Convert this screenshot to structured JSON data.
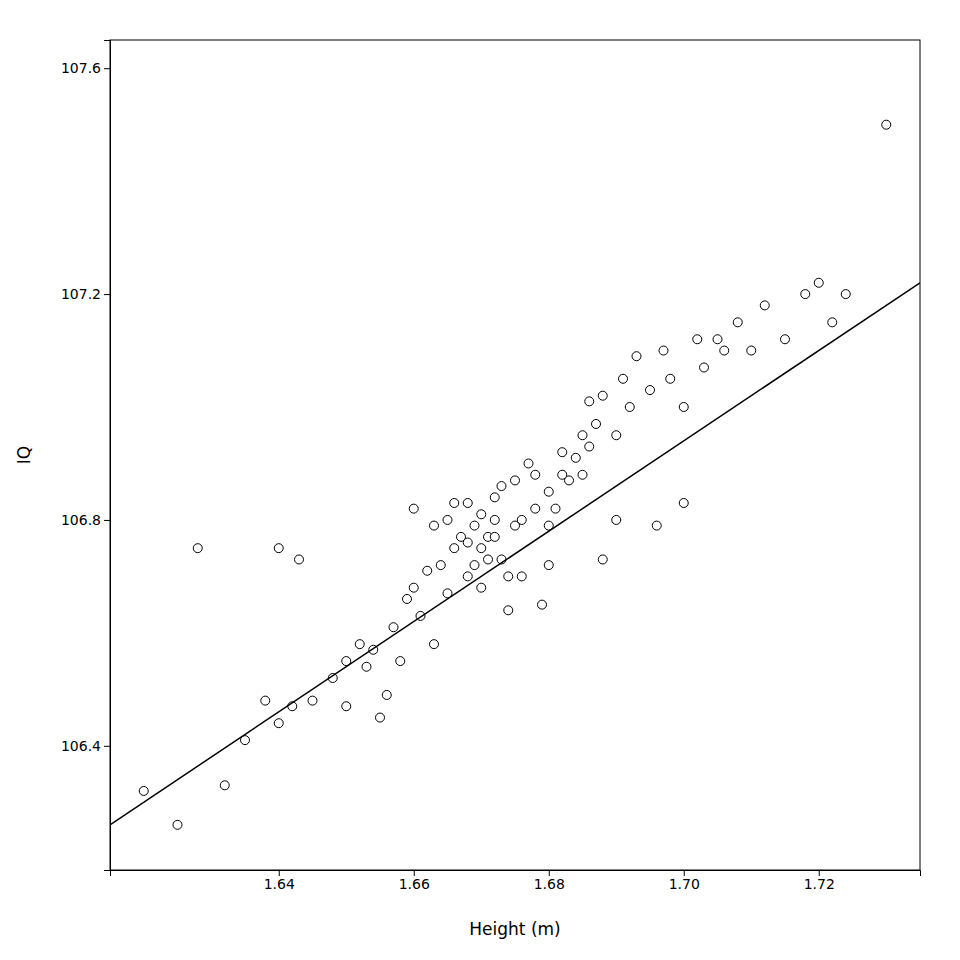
{
  "chart_data": {
    "type": "scatter",
    "xlabel": "Height (m)",
    "ylabel": "IQ",
    "xlim": [
      1.615,
      1.735
    ],
    "ylim": [
      106.18,
      107.65
    ],
    "xticks": [
      1.64,
      1.66,
      1.68,
      {
        "value": 1.7,
        "label": "1.70"
      },
      1.72
    ],
    "yticks": [
      106.4,
      106.8,
      107.2,
      107.6
    ],
    "grid": false,
    "series": [
      {
        "type": "scatter",
        "color": "black",
        "x": [
          1.62,
          1.625,
          1.628,
          1.632,
          1.635,
          1.638,
          1.64,
          1.64,
          1.642,
          1.643,
          1.645,
          1.648,
          1.65,
          1.65,
          1.652,
          1.653,
          1.654,
          1.655,
          1.656,
          1.657,
          1.658,
          1.659,
          1.66,
          1.66,
          1.661,
          1.662,
          1.663,
          1.663,
          1.664,
          1.665,
          1.665,
          1.666,
          1.666,
          1.667,
          1.668,
          1.668,
          1.668,
          1.669,
          1.669,
          1.67,
          1.67,
          1.67,
          1.671,
          1.671,
          1.672,
          1.672,
          1.672,
          1.673,
          1.673,
          1.674,
          1.674,
          1.675,
          1.675,
          1.676,
          1.676,
          1.677,
          1.678,
          1.678,
          1.679,
          1.68,
          1.68,
          1.68,
          1.681,
          1.682,
          1.682,
          1.683,
          1.684,
          1.685,
          1.685,
          1.686,
          1.686,
          1.687,
          1.688,
          1.688,
          1.69,
          1.69,
          1.691,
          1.692,
          1.693,
          1.695,
          1.696,
          1.697,
          1.698,
          1.7,
          1.7,
          1.702,
          1.703,
          1.705,
          1.706,
          1.708,
          1.71,
          1.712,
          1.715,
          1.718,
          1.72,
          1.722,
          1.724,
          1.73
        ],
        "values": [
          106.32,
          106.26,
          106.75,
          106.33,
          106.41,
          106.48,
          106.75,
          106.44,
          106.47,
          106.73,
          106.48,
          106.52,
          106.47,
          106.55,
          106.58,
          106.54,
          106.57,
          106.45,
          106.49,
          106.61,
          106.55,
          106.66,
          106.68,
          106.82,
          106.63,
          106.71,
          106.79,
          106.58,
          106.72,
          106.67,
          106.8,
          106.75,
          106.83,
          106.77,
          106.7,
          106.76,
          106.83,
          106.72,
          106.79,
          106.68,
          106.75,
          106.81,
          106.73,
          106.77,
          106.77,
          106.84,
          106.8,
          106.73,
          106.86,
          106.64,
          106.7,
          106.79,
          106.87,
          106.8,
          106.7,
          106.9,
          106.82,
          106.88,
          106.65,
          106.72,
          106.79,
          106.85,
          106.82,
          106.88,
          106.92,
          106.87,
          106.91,
          106.95,
          106.88,
          106.93,
          107.01,
          106.97,
          106.73,
          107.02,
          106.8,
          106.95,
          107.05,
          107.0,
          107.09,
          107.03,
          106.79,
          107.1,
          107.05,
          107.0,
          106.83,
          107.12,
          107.07,
          107.12,
          107.1,
          107.15,
          107.1,
          107.18,
          107.12,
          107.2,
          107.22,
          107.15,
          107.2,
          107.5
        ]
      },
      {
        "type": "line",
        "color": "black",
        "x": [
          1.615,
          1.735
        ],
        "values": [
          106.26,
          107.22
        ]
      }
    ]
  }
}
